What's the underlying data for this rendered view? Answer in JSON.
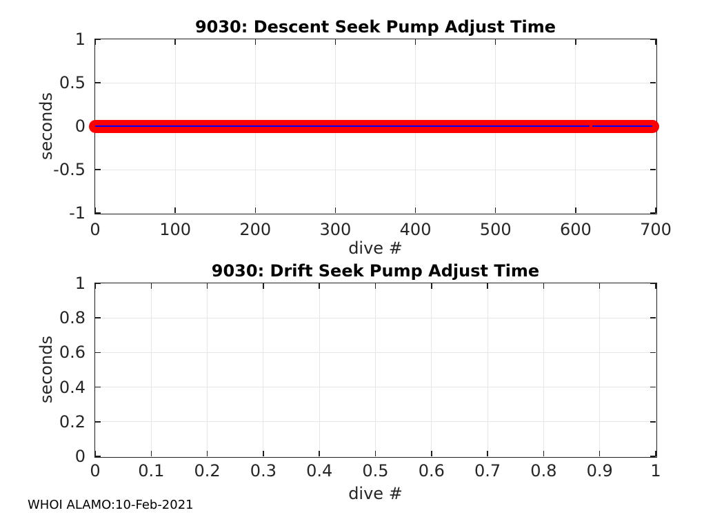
{
  "figure": {
    "footer": "WHOI ALAMO:10-Feb-2021",
    "background": "#ffffff",
    "colors": {
      "marker_face": "#ff0000",
      "line": "#0000ff",
      "axis": "#1f1f1f",
      "grid": "#e6e6e6",
      "tick_label": "#262626",
      "title": "#000000"
    }
  },
  "chart_data": [
    {
      "type": "scatter",
      "title": "9030: Descent Seek Pump Adjust Time",
      "xlabel": "dive #",
      "ylabel": "seconds",
      "xlim": [
        0,
        700
      ],
      "ylim": [
        -1,
        1
      ],
      "xticks": [
        "0",
        "100",
        "200",
        "300",
        "400",
        "500",
        "600",
        "700"
      ],
      "yticks": [
        "-1",
        "-0.5",
        "0",
        "0.5",
        "1"
      ],
      "grid": true,
      "legend": "none",
      "series": [
        {
          "name": "descent seek pump adjust time",
          "style": "red circle markers overlaid by thin blue line",
          "x_start": 0,
          "x_end": 696,
          "y_constant": 0,
          "line_gap_x": [
            617,
            621
          ],
          "note": "one point per dive from 0 to ~696, every value 0 seconds; tiny break in the line near dive 619"
        }
      ]
    },
    {
      "type": "scatter",
      "title": "9030: Drift Seek Pump Adjust Time",
      "xlabel": "dive #",
      "ylabel": "seconds",
      "xlim": [
        0,
        1
      ],
      "ylim": [
        0,
        1
      ],
      "xticks": [
        "0",
        "0.1",
        "0.2",
        "0.3",
        "0.4",
        "0.5",
        "0.6",
        "0.7",
        "0.8",
        "0.9",
        "1"
      ],
      "yticks": [
        "0",
        "0.2",
        "0.4",
        "0.6",
        "0.8",
        "1"
      ],
      "grid": true,
      "legend": "none",
      "series": []
    }
  ]
}
